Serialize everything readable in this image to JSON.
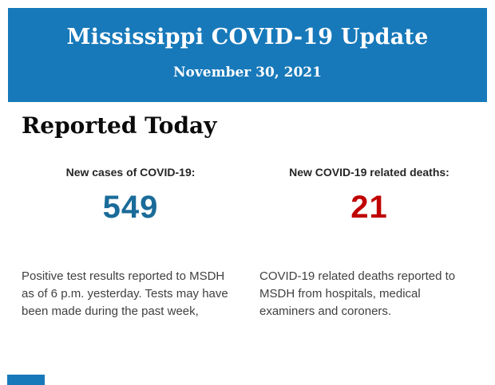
{
  "header": {
    "title": "Mississippi COVID-19 Update",
    "date": "November 30, 2021",
    "background_color": "#1779BA",
    "text_color": "#FFFFFF"
  },
  "section": {
    "heading": "Reported Today"
  },
  "stats": [
    {
      "label": "New cases of COVID-19:",
      "value": "549",
      "value_color": "#1A6B99",
      "description": "Positive test results reported to MSDH as of 6 p.m. yesterday. Tests may have been made during the past week,"
    },
    {
      "label": "New COVID-19 related deaths:",
      "value": "21",
      "value_color": "#C00000",
      "description": "COVID-19 related deaths reported to MSDH from hospitals, medical examiners and coroners."
    }
  ],
  "footer": {
    "partial_next_section_color": "#1779BA"
  }
}
